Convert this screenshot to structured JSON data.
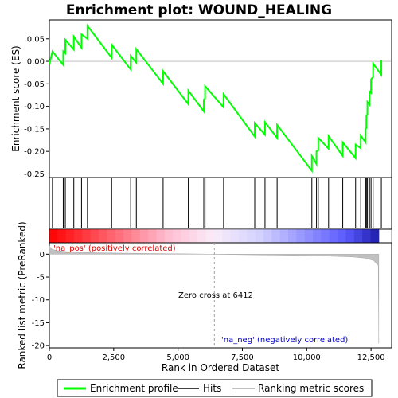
{
  "chart_data": {
    "type": "line",
    "title": "Enrichment plot: WOUND_HEALING",
    "xlabel": "Rank in Ordered Dataset",
    "ylabel_top": "Enrichment score (ES)",
    "ylabel_bottom": "Ranked list metric (PreRanked)",
    "x_ticks": [
      0,
      2500,
      5000,
      7500,
      10000,
      12500
    ],
    "x_tick_labels": [
      "0",
      "2,500",
      "5,000",
      "7,500",
      "10,000",
      "12,500"
    ],
    "es_y_ticks": [
      0.05,
      0.0,
      -0.05,
      -0.1,
      -0.15,
      -0.2,
      -0.25
    ],
    "es_y_tick_labels": [
      "0.05",
      "0.00",
      "-0.05",
      "-0.10",
      "-0.15",
      "-0.20",
      "-0.25"
    ],
    "metric_y_ticks": [
      0,
      -5,
      -10,
      -15,
      -20
    ],
    "metric_y_tick_labels": [
      "0",
      "-5",
      "-10",
      "-15",
      "-20"
    ],
    "xlim": [
      0,
      13300
    ],
    "es_ylim": [
      -0.258,
      0.092
    ],
    "metric_ylim": [
      -20.5,
      2.5
    ],
    "n_genes": 12800,
    "zero_cross": 6412,
    "zero_cross_label": "Zero cross at 6412",
    "pos_label": "'na_pos' (positively correlated)",
    "neg_label": "'na_neg' (negatively correlated)",
    "hits": [
      120,
      540,
      620,
      950,
      1250,
      1480,
      2420,
      3160,
      3380,
      4420,
      5400,
      6000,
      6050,
      6770,
      7980,
      8380,
      8850,
      10200,
      10380,
      10450,
      10850,
      11400,
      11900,
      12100,
      12290,
      12320,
      12360,
      12440,
      12500,
      12580,
      12900
    ],
    "es_curve": [
      [
        0,
        -0.007
      ],
      [
        120,
        0.022
      ],
      [
        539,
        -0.008
      ],
      [
        540,
        0.022
      ],
      [
        619,
        0.018
      ],
      [
        620,
        0.048
      ],
      [
        949,
        0.026
      ],
      [
        950,
        0.055
      ],
      [
        1249,
        0.03
      ],
      [
        1250,
        0.06
      ],
      [
        1479,
        0.05
      ],
      [
        1480,
        0.079
      ],
      [
        2419,
        0.008
      ],
      [
        2420,
        0.037
      ],
      [
        3159,
        -0.018
      ],
      [
        3160,
        0.012
      ],
      [
        3379,
        -0.003
      ],
      [
        3380,
        0.027
      ],
      [
        4419,
        -0.05
      ],
      [
        4420,
        -0.022
      ],
      [
        5399,
        -0.095
      ],
      [
        5400,
        -0.065
      ],
      [
        5999,
        -0.111
      ],
      [
        6000,
        -0.085
      ],
      [
        6049,
        -0.083
      ],
      [
        6050,
        -0.055
      ],
      [
        6769,
        -0.102
      ],
      [
        6770,
        -0.073
      ],
      [
        7979,
        -0.167
      ],
      [
        7980,
        -0.137
      ],
      [
        8379,
        -0.163
      ],
      [
        8380,
        -0.135
      ],
      [
        8849,
        -0.17
      ],
      [
        8850,
        -0.141
      ],
      [
        10199,
        -0.243
      ],
      [
        10200,
        -0.21
      ],
      [
        10379,
        -0.228
      ],
      [
        10380,
        -0.2
      ],
      [
        10449,
        -0.198
      ],
      [
        10450,
        -0.17
      ],
      [
        10849,
        -0.194
      ],
      [
        10850,
        -0.166
      ],
      [
        11399,
        -0.21
      ],
      [
        11400,
        -0.18
      ],
      [
        11899,
        -0.215
      ],
      [
        11900,
        -0.185
      ],
      [
        12099,
        -0.193
      ],
      [
        12100,
        -0.165
      ],
      [
        12289,
        -0.18
      ],
      [
        12290,
        -0.15
      ],
      [
        12319,
        -0.148
      ],
      [
        12320,
        -0.12
      ],
      [
        12359,
        -0.118
      ],
      [
        12360,
        -0.09
      ],
      [
        12439,
        -0.096
      ],
      [
        12440,
        -0.067
      ],
      [
        12499,
        -0.07
      ],
      [
        12500,
        -0.04
      ],
      [
        12579,
        -0.035
      ],
      [
        12580,
        -0.005
      ],
      [
        12899,
        -0.03
      ],
      [
        12900,
        0.002
      ]
    ],
    "metric_curve": [
      [
        0,
        1.8
      ],
      [
        100,
        1.1
      ],
      [
        300,
        0.8
      ],
      [
        600,
        0.6
      ],
      [
        1000,
        0.45
      ],
      [
        1500,
        0.35
      ],
      [
        2500,
        0.25
      ],
      [
        4000,
        0.15
      ],
      [
        5500,
        0.07
      ],
      [
        6412,
        0.0
      ],
      [
        7500,
        -0.1
      ],
      [
        9000,
        -0.2
      ],
      [
        10000,
        -0.3
      ],
      [
        11000,
        -0.45
      ],
      [
        11800,
        -0.6
      ],
      [
        12300,
        -0.9
      ],
      [
        12600,
        -1.4
      ],
      [
        12780,
        -2.5
      ],
      [
        12800,
        -19.5
      ]
    ],
    "legend": [
      "Enrichment profile",
      "Hits",
      "Ranking metric scores"
    ],
    "colors": {
      "es_line": "#00ff00",
      "hit_line": "#000000",
      "metric_fill": "#c0c0c0",
      "pos_text": "#dd0000",
      "neg_text": "#0000cc",
      "zero_line": "#a0a0a0"
    }
  }
}
